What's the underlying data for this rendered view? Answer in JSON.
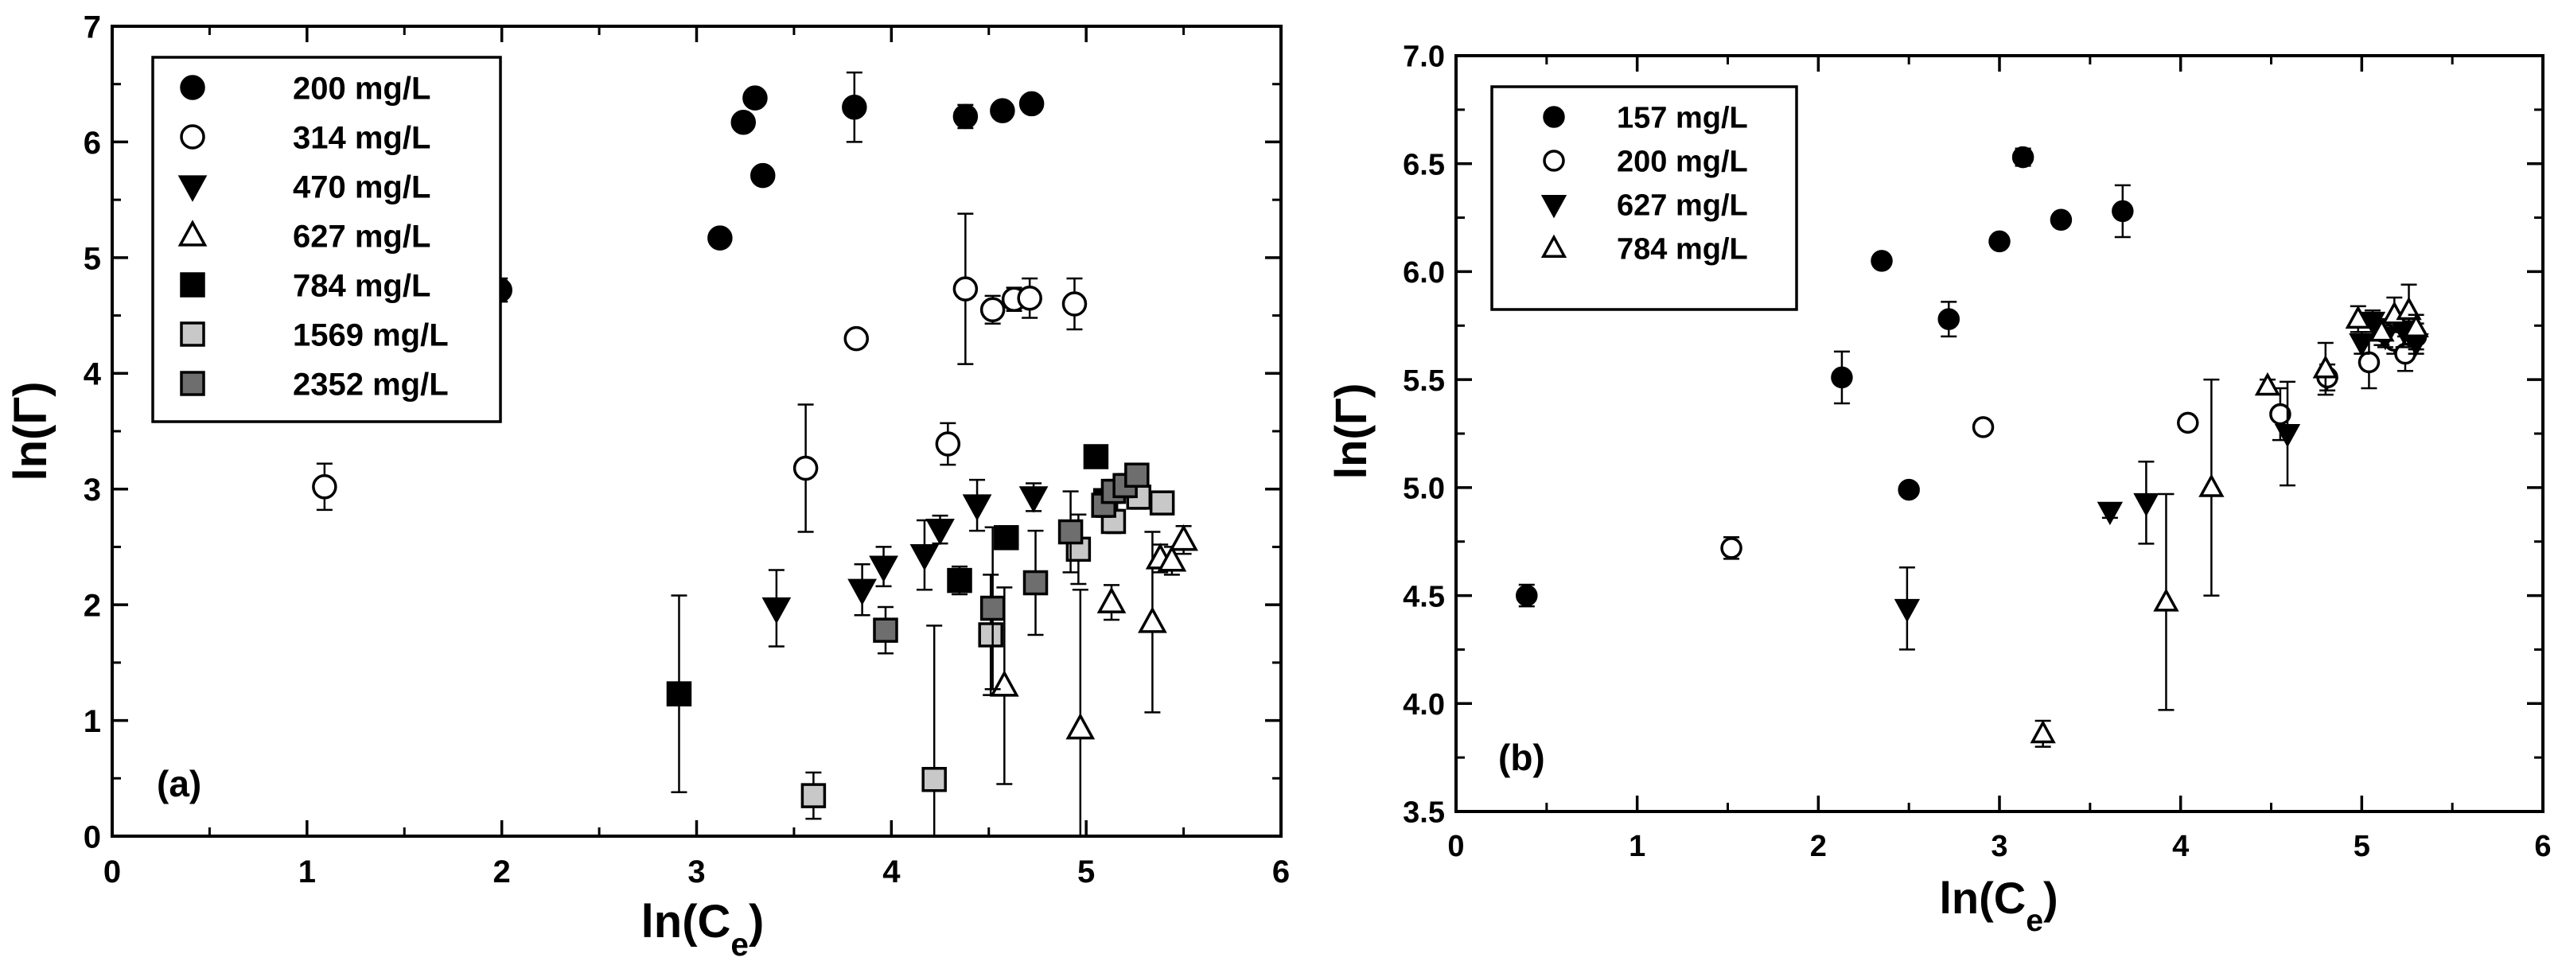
{
  "chart_data": [
    {
      "panel_label": "(a)",
      "type": "scatter",
      "xlabel": "ln(C",
      "xlabel_sub": "e",
      "xlabel_end": ")",
      "ylabel": "ln(Γ)",
      "xlim": [
        0,
        6
      ],
      "ylim": [
        0,
        7
      ],
      "xticks": [
        0,
        1,
        2,
        3,
        4,
        5,
        6
      ],
      "yticks": [
        0,
        1,
        2,
        3,
        4,
        5,
        6,
        7
      ],
      "legend_position": "top-left",
      "series": [
        {
          "name": "200 mg/L",
          "marker": "circle",
          "fill": "#000000",
          "points": [
            {
              "x": 1.99,
              "y": 4.72,
              "err": 0.1
            },
            {
              "x": 3.12,
              "y": 5.17,
              "err": 0.05
            },
            {
              "x": 3.24,
              "y": 6.17,
              "err": 0.05
            },
            {
              "x": 3.3,
              "y": 6.38,
              "err": 0.05
            },
            {
              "x": 3.34,
              "y": 5.71,
              "err": 0.05
            },
            {
              "x": 3.81,
              "y": 6.3,
              "err": 0.3
            },
            {
              "x": 4.38,
              "y": 6.22,
              "err": 0.1
            },
            {
              "x": 4.57,
              "y": 6.27,
              "err": 0.05
            },
            {
              "x": 4.72,
              "y": 6.33,
              "err": 0.05
            }
          ]
        },
        {
          "name": "314 mg/L",
          "marker": "circle",
          "fill": "#ffffff",
          "points": [
            {
              "x": 1.09,
              "y": 3.02,
              "err": 0.2
            },
            {
              "x": 3.56,
              "y": 3.18,
              "err": 0.55
            },
            {
              "x": 3.82,
              "y": 4.3,
              "err": 0.05
            },
            {
              "x": 4.29,
              "y": 3.39,
              "err": 0.18
            },
            {
              "x": 4.38,
              "y": 4.73,
              "err": 0.65
            },
            {
              "x": 4.52,
              "y": 4.55,
              "err": 0.12
            },
            {
              "x": 4.63,
              "y": 4.64,
              "err": 0.1
            },
            {
              "x": 4.71,
              "y": 4.65,
              "err": 0.17
            },
            {
              "x": 4.94,
              "y": 4.6,
              "err": 0.22
            }
          ]
        },
        {
          "name": "470 mg/L",
          "marker": "triangle-down",
          "fill": "#000000",
          "points": [
            {
              "x": 3.41,
              "y": 1.97,
              "err": 0.33
            },
            {
              "x": 3.85,
              "y": 2.13,
              "err": 0.22
            },
            {
              "x": 3.96,
              "y": 2.33,
              "err": 0.17
            },
            {
              "x": 4.17,
              "y": 2.43,
              "err": 0.3
            },
            {
              "x": 4.25,
              "y": 2.65,
              "err": 0.12
            },
            {
              "x": 4.44,
              "y": 2.86,
              "err": 0.22
            },
            {
              "x": 4.73,
              "y": 2.93,
              "err": 0.12
            }
          ]
        },
        {
          "name": "627 mg/L",
          "marker": "triangle-up",
          "fill": "#ffffff",
          "points": [
            {
              "x": 4.58,
              "y": 1.3,
              "err": 0.85
            },
            {
              "x": 4.97,
              "y": 0.93,
              "err": 1.2
            },
            {
              "x": 5.13,
              "y": 2.02,
              "err": 0.15
            },
            {
              "x": 5.34,
              "y": 1.85,
              "err": 0.78
            },
            {
              "x": 5.38,
              "y": 2.4,
              "err": 0.12
            },
            {
              "x": 5.44,
              "y": 2.38,
              "err": 0.12
            },
            {
              "x": 5.5,
              "y": 2.56,
              "err": 0.12
            }
          ]
        },
        {
          "name": "784 mg/L",
          "marker": "square",
          "fill": "#000000",
          "points": [
            {
              "x": 2.91,
              "y": 1.23,
              "err": 0.85
            },
            {
              "x": 4.35,
              "y": 2.21,
              "err": 0.12
            },
            {
              "x": 4.59,
              "y": 2.58,
              "err": 0.05
            },
            {
              "x": 5.05,
              "y": 3.28,
              "err": 0.05
            },
            {
              "x": 5.1,
              "y": 2.9,
              "err": 0.1
            }
          ]
        },
        {
          "name": "1569 mg/L",
          "marker": "square",
          "fill": "#c8c8c8",
          "points": [
            {
              "x": 3.6,
              "y": 0.35,
              "err": 0.2
            },
            {
              "x": 4.22,
              "y": 0.49,
              "err": 1.33
            },
            {
              "x": 4.51,
              "y": 1.74,
              "err": 0.52
            },
            {
              "x": 4.96,
              "y": 2.48,
              "err": 0.3
            },
            {
              "x": 5.14,
              "y": 2.72,
              "err": 0.1
            },
            {
              "x": 5.27,
              "y": 2.93,
              "err": 0.1
            },
            {
              "x": 5.39,
              "y": 2.88,
              "err": 0.05
            }
          ]
        },
        {
          "name": "2352 mg/L",
          "marker": "square",
          "fill": "#6e6e6e",
          "points": [
            {
              "x": 3.97,
              "y": 1.78,
              "err": 0.2
            },
            {
              "x": 4.52,
              "y": 1.97,
              "err": 0.7
            },
            {
              "x": 4.74,
              "y": 2.19,
              "err": 0.45
            },
            {
              "x": 4.92,
              "y": 2.63,
              "err": 0.35
            },
            {
              "x": 5.09,
              "y": 2.86,
              "err": 0.1
            },
            {
              "x": 5.14,
              "y": 2.98,
              "err": 0.1
            },
            {
              "x": 5.2,
              "y": 3.03,
              "err": 0.1
            },
            {
              "x": 5.26,
              "y": 3.12,
              "err": 0.1
            }
          ]
        }
      ]
    },
    {
      "panel_label": "(b)",
      "type": "scatter",
      "xlabel": "ln(C",
      "xlabel_sub": "e",
      "xlabel_end": ")",
      "ylabel": "ln(Γ)",
      "xlim": [
        0,
        6
      ],
      "ylim": [
        3.5,
        7.0
      ],
      "xticks": [
        0,
        1,
        2,
        3,
        4,
        5,
        6
      ],
      "yticks": [
        3.5,
        4.0,
        4.5,
        5.0,
        5.5,
        6.0,
        6.5,
        7.0
      ],
      "ytick_labels": [
        "3.5",
        "4.0",
        "4.5",
        "5.0",
        "5.5",
        "6.0",
        "6.5",
        "7.0"
      ],
      "legend_position": "top-left",
      "series": [
        {
          "name": "157 mg/L",
          "marker": "circle",
          "fill": "#000000",
          "points": [
            {
              "x": 0.39,
              "y": 4.5,
              "err": 0.05
            },
            {
              "x": 2.13,
              "y": 5.51,
              "err": 0.12
            },
            {
              "x": 2.35,
              "y": 6.05,
              "err": 0.03
            },
            {
              "x": 2.5,
              "y": 4.99,
              "err": 0.03
            },
            {
              "x": 2.72,
              "y": 5.78,
              "err": 0.08
            },
            {
              "x": 3.0,
              "y": 6.14,
              "err": 0.03
            },
            {
              "x": 3.13,
              "y": 6.53,
              "err": 0.04
            },
            {
              "x": 3.34,
              "y": 6.24,
              "err": 0.03
            },
            {
              "x": 3.68,
              "y": 6.28,
              "err": 0.12
            }
          ]
        },
        {
          "name": "200 mg/L",
          "marker": "circle",
          "fill": "#ffffff",
          "points": [
            {
              "x": 1.52,
              "y": 4.72,
              "err": 0.05
            },
            {
              "x": 2.91,
              "y": 5.28,
              "err": 0.03
            },
            {
              "x": 4.04,
              "y": 5.3,
              "err": 0.03
            },
            {
              "x": 4.55,
              "y": 5.34,
              "err": 0.12
            },
            {
              "x": 4.81,
              "y": 5.51,
              "err": 0.06
            },
            {
              "x": 5.04,
              "y": 5.58,
              "err": 0.12
            },
            {
              "x": 5.12,
              "y": 5.72,
              "err": 0.06
            },
            {
              "x": 5.18,
              "y": 5.68,
              "err": 0.06
            },
            {
              "x": 5.24,
              "y": 5.62,
              "err": 0.08
            },
            {
              "x": 5.3,
              "y": 5.7,
              "err": 0.06
            }
          ]
        },
        {
          "name": "627 mg/L",
          "marker": "triangle-down",
          "fill": "#000000",
          "points": [
            {
              "x": 2.49,
              "y": 4.44,
              "err": 0.19
            },
            {
              "x": 3.61,
              "y": 4.89,
              "err": 0.03
            },
            {
              "x": 3.81,
              "y": 4.93,
              "err": 0.19
            },
            {
              "x": 4.59,
              "y": 5.25,
              "err": 0.24
            },
            {
              "x": 5.0,
              "y": 5.67,
              "err": 0.05
            },
            {
              "x": 5.06,
              "y": 5.77,
              "err": 0.05
            },
            {
              "x": 5.13,
              "y": 5.7,
              "err": 0.05
            },
            {
              "x": 5.23,
              "y": 5.73,
              "err": 0.08
            },
            {
              "x": 5.3,
              "y": 5.67,
              "err": 0.05
            }
          ]
        },
        {
          "name": "784 mg/L",
          "marker": "triangle-up",
          "fill": "#ffffff",
          "points": [
            {
              "x": 3.24,
              "y": 3.86,
              "err": 0.06
            },
            {
              "x": 3.92,
              "y": 4.47,
              "err": 0.5
            },
            {
              "x": 4.17,
              "y": 5.0,
              "err": 0.5
            },
            {
              "x": 4.48,
              "y": 5.47,
              "err": 0.03
            },
            {
              "x": 4.8,
              "y": 5.55,
              "err": 0.12
            },
            {
              "x": 4.98,
              "y": 5.78,
              "err": 0.06
            },
            {
              "x": 5.11,
              "y": 5.72,
              "err": 0.06
            },
            {
              "x": 5.18,
              "y": 5.8,
              "err": 0.08
            },
            {
              "x": 5.26,
              "y": 5.82,
              "err": 0.12
            },
            {
              "x": 5.3,
              "y": 5.74,
              "err": 0.06
            }
          ]
        }
      ]
    }
  ]
}
